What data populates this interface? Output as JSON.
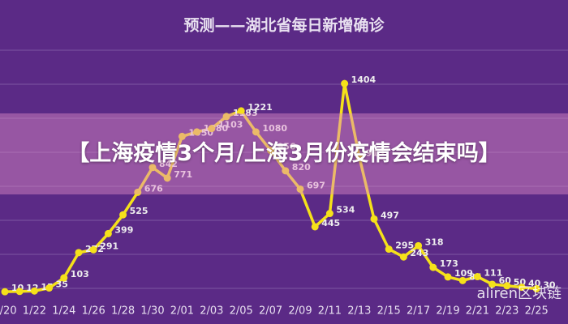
{
  "chart_data": {
    "type": "line",
    "title": "预测——湖北省每日新增确诊",
    "categories": [
      "1/20",
      null,
      "1/22",
      null,
      "1/24",
      null,
      "1/26",
      null,
      "1/28",
      null,
      "1/30",
      null,
      "2/01",
      null,
      "2/03",
      null,
      "2/05",
      null,
      "2/07",
      null,
      "2/09",
      null,
      "2/11",
      null,
      "2/13",
      null,
      "2/15",
      null,
      "2/17",
      null,
      "2/19",
      null,
      "2/21",
      null,
      "2/23",
      null,
      "2/25"
    ],
    "series": [
      {
        "color": "#f5e11a",
        "values": [
          10,
          12,
          15,
          35,
          103,
          272,
          291,
          399,
          525,
          676,
          842,
          771,
          1050,
          1080,
          1103,
          1183,
          1221,
          1080,
          956,
          820,
          697,
          445,
          534,
          1404,
          913,
          497,
          295,
          243,
          318,
          173,
          109,
          85,
          111,
          60,
          50,
          40,
          30
        ]
      }
    ],
    "ylim": [
      0,
      1600
    ]
  },
  "overlay": {
    "headline": "【上海疫情3个月/上海3月份疫情会结束吗】"
  },
  "watermark": "aliren区块链"
}
